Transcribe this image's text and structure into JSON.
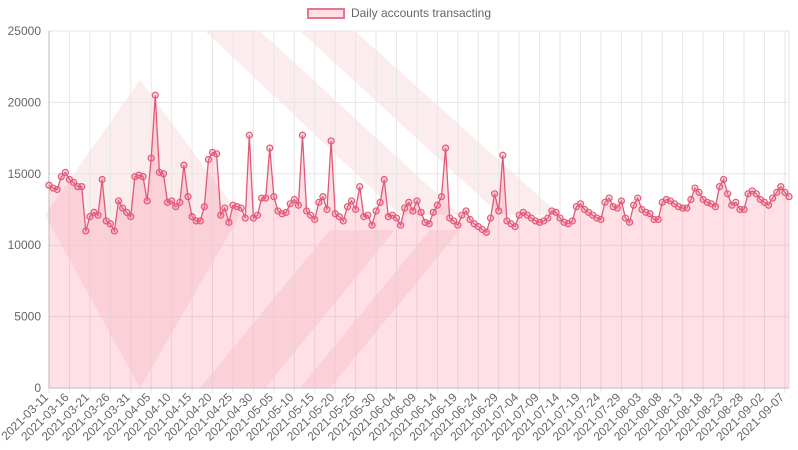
{
  "legend": {
    "label": "Daily accounts transacting"
  },
  "colors": {
    "line": "#e05a78",
    "fill": "rgba(255,99,132,0.2)",
    "point": "#e05a78",
    "grid": "#e6e6e6",
    "watermark": "#f3c9cf"
  },
  "chart_data": {
    "type": "area",
    "title": "",
    "xlabel": "",
    "ylabel": "",
    "ylim": [
      0,
      25000
    ],
    "yticks": [
      0,
      5000,
      10000,
      15000,
      20000,
      25000
    ],
    "grid": true,
    "legend_position": "top",
    "xtick_labels": [
      "2021-03-11",
      "2021-03-16",
      "2021-03-21",
      "2021-03-26",
      "2021-03-31",
      "2021-04-05",
      "2021-04-10",
      "2021-04-15",
      "2021-04-20",
      "2021-04-25",
      "2021-04-30",
      "2021-05-05",
      "2021-05-10",
      "2021-05-15",
      "2021-05-20",
      "2021-05-25",
      "2021-05-30",
      "2021-06-04",
      "2021-06-09",
      "2021-06-14",
      "2021-06-19",
      "2021-06-24",
      "2021-06-29",
      "2021-07-04",
      "2021-07-09",
      "2021-07-14",
      "2021-07-19",
      "2021-07-24",
      "2021-07-29",
      "2021-08-03",
      "2021-08-08",
      "2021-08-13",
      "2021-08-18",
      "2021-08-23",
      "2021-08-28",
      "2021-09-02",
      "2021-09-07"
    ],
    "series": [
      {
        "name": "Daily accounts transacting",
        "start_date": "2021-03-11",
        "values": [
          14200,
          14000,
          13900,
          14800,
          15100,
          14600,
          14400,
          14100,
          14100,
          11000,
          12000,
          12300,
          12100,
          14600,
          11700,
          11500,
          11000,
          13100,
          12600,
          12300,
          12000,
          14800,
          14900,
          14800,
          13100,
          16100,
          20500,
          15100,
          15000,
          13000,
          13100,
          12700,
          13000,
          15600,
          13400,
          12000,
          11700,
          11700,
          12700,
          16000,
          16500,
          16400,
          12100,
          12600,
          11600,
          12800,
          12700,
          12600,
          11900,
          17700,
          11900,
          12100,
          13300,
          13300,
          16800,
          13400,
          12400,
          12200,
          12300,
          12900,
          13200,
          12800,
          17700,
          12400,
          12100,
          11800,
          13000,
          13400,
          12500,
          17300,
          12200,
          12000,
          11700,
          12700,
          13100,
          12500,
          14100,
          12000,
          12100,
          11400,
          12400,
          13000,
          14600,
          12000,
          12100,
          11900,
          11400,
          12600,
          13000,
          12400,
          13100,
          12300,
          11600,
          11500,
          12300,
          12800,
          13400,
          16800,
          11900,
          11700,
          11400,
          12100,
          12400,
          11800,
          11500,
          11300,
          11100,
          10900,
          11900,
          13600,
          12400,
          16300,
          11700,
          11500,
          11300,
          12100,
          12300,
          12100,
          11900,
          11700,
          11600,
          11700,
          11900,
          12400,
          12300,
          11900,
          11600,
          11500,
          11700,
          12700,
          12900,
          12500,
          12300,
          12100,
          11900,
          11800,
          13000,
          13300,
          12700,
          12600,
          13100,
          11900,
          11600,
          12800,
          13300,
          12500,
          12300,
          12200,
          11800,
          11800,
          13000,
          13200,
          13100,
          12900,
          12700,
          12600,
          12600,
          13200,
          14000,
          13700,
          13200,
          13000,
          12900,
          12700,
          14100,
          14600,
          13600,
          12800,
          13000,
          12500,
          12500,
          13600,
          13800,
          13600,
          13200,
          13000,
          12800,
          13300,
          13700,
          14100,
          13700,
          13400
        ]
      }
    ]
  }
}
